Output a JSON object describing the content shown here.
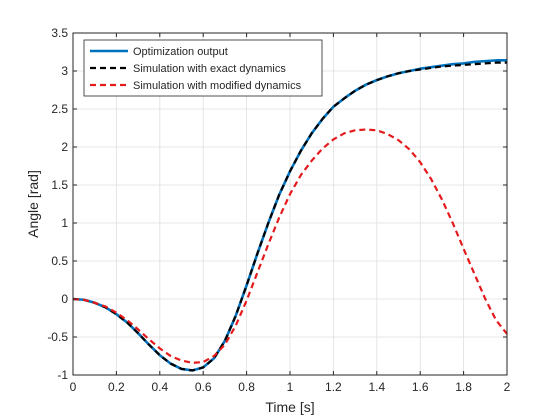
{
  "chart_data": {
    "type": "line",
    "xlabel": "Time [s]",
    "ylabel": "Angle [rad]",
    "xlim": [
      0,
      2
    ],
    "ylim": [
      -1,
      3.5
    ],
    "grid": true,
    "legend_placement": "top-left",
    "xticks": [
      "0",
      "0.2",
      "0.4",
      "0.6",
      "0.8",
      "1",
      "1.2",
      "1.4",
      "1.6",
      "1.8",
      "2"
    ],
    "yticks": [
      "-1",
      "-0.5",
      "0",
      "0.5",
      "1",
      "1.5",
      "2",
      "2.5",
      "3",
      "3.5"
    ],
    "series": [
      {
        "name": "Optimization output",
        "style": "solid",
        "color": "#0072BD",
        "x": [
          0,
          0.05,
          0.1,
          0.15,
          0.2,
          0.25,
          0.3,
          0.35,
          0.4,
          0.45,
          0.5,
          0.55,
          0.6,
          0.65,
          0.7,
          0.75,
          0.8,
          0.85,
          0.9,
          0.95,
          1.0,
          1.05,
          1.1,
          1.15,
          1.2,
          1.25,
          1.3,
          1.35,
          1.4,
          1.45,
          1.5,
          1.55,
          1.6,
          1.65,
          1.7,
          1.75,
          1.8,
          1.85,
          1.9,
          1.95,
          2.0
        ],
        "y": [
          0,
          -0.01,
          -0.05,
          -0.11,
          -0.2,
          -0.31,
          -0.45,
          -0.6,
          -0.74,
          -0.85,
          -0.92,
          -0.94,
          -0.9,
          -0.78,
          -0.55,
          -0.22,
          0.18,
          0.6,
          1.0,
          1.37,
          1.68,
          1.95,
          2.18,
          2.37,
          2.53,
          2.64,
          2.74,
          2.82,
          2.88,
          2.93,
          2.97,
          3.0,
          3.03,
          3.05,
          3.07,
          3.09,
          3.1,
          3.12,
          3.13,
          3.14,
          3.14
        ]
      },
      {
        "name": "Simulation with exact dynamics",
        "style": "dashed",
        "color": "#000000",
        "x": [
          0,
          0.05,
          0.1,
          0.15,
          0.2,
          0.25,
          0.3,
          0.35,
          0.4,
          0.45,
          0.5,
          0.55,
          0.6,
          0.65,
          0.7,
          0.75,
          0.8,
          0.85,
          0.9,
          0.95,
          1.0,
          1.05,
          1.1,
          1.15,
          1.2,
          1.25,
          1.3,
          1.35,
          1.4,
          1.45,
          1.5,
          1.55,
          1.6,
          1.65,
          1.7,
          1.75,
          1.8,
          1.85,
          1.9,
          1.95,
          2.0
        ],
        "y": [
          0,
          -0.01,
          -0.05,
          -0.11,
          -0.2,
          -0.31,
          -0.45,
          -0.6,
          -0.74,
          -0.85,
          -0.92,
          -0.94,
          -0.9,
          -0.78,
          -0.55,
          -0.22,
          0.18,
          0.6,
          1.0,
          1.37,
          1.68,
          1.95,
          2.18,
          2.37,
          2.53,
          2.64,
          2.74,
          2.82,
          2.88,
          2.93,
          2.97,
          3.0,
          3.02,
          3.04,
          3.06,
          3.07,
          3.08,
          3.09,
          3.1,
          3.11,
          3.11
        ]
      },
      {
        "name": "Simulation with modified dynamics",
        "style": "dashed",
        "color": "#E41A1C",
        "x": [
          0,
          0.05,
          0.1,
          0.15,
          0.2,
          0.25,
          0.3,
          0.35,
          0.4,
          0.45,
          0.5,
          0.55,
          0.6,
          0.65,
          0.7,
          0.75,
          0.8,
          0.85,
          0.9,
          0.95,
          1.0,
          1.05,
          1.1,
          1.15,
          1.2,
          1.25,
          1.3,
          1.35,
          1.4,
          1.45,
          1.5,
          1.55,
          1.6,
          1.65,
          1.7,
          1.75,
          1.8,
          1.85,
          1.9,
          1.95,
          2.0
        ],
        "y": [
          0,
          -0.01,
          -0.05,
          -0.1,
          -0.18,
          -0.28,
          -0.4,
          -0.53,
          -0.65,
          -0.75,
          -0.81,
          -0.84,
          -0.83,
          -0.75,
          -0.6,
          -0.35,
          -0.02,
          0.35,
          0.72,
          1.07,
          1.38,
          1.63,
          1.82,
          1.98,
          2.1,
          2.18,
          2.22,
          2.23,
          2.22,
          2.17,
          2.09,
          1.97,
          1.8,
          1.58,
          1.31,
          1.0,
          0.66,
          0.33,
          0.0,
          -0.28,
          -0.46
        ]
      }
    ]
  }
}
